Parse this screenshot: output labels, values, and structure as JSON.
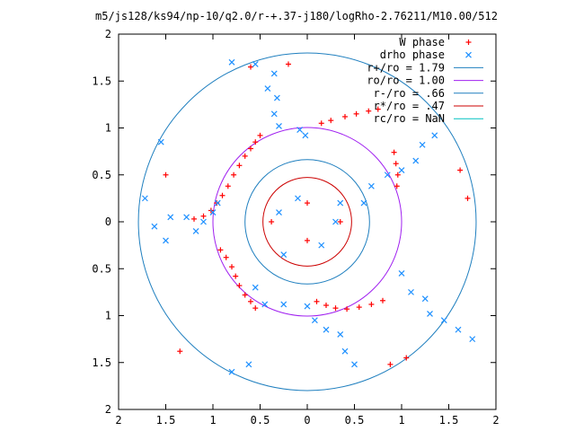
{
  "chart_data": {
    "type": "scatter",
    "title": "m5/js128/ks94/np-10/q2.0/r-+.37-j180/logRho-2.76211/M10.00/512",
    "xlim": [
      2,
      -2
    ],
    "ylim": [
      -2,
      2
    ],
    "x_ticks": [
      {
        "v": 2,
        "label": "2"
      },
      {
        "v": 1.5,
        "label": "1.5"
      },
      {
        "v": 1,
        "label": "1"
      },
      {
        "v": 0.5,
        "label": "0.5"
      },
      {
        "v": 0,
        "label": "0"
      },
      {
        "v": -0.5,
        "label": "0.5"
      },
      {
        "v": -1,
        "label": "1"
      },
      {
        "v": -1.5,
        "label": "1.5"
      },
      {
        "v": -2,
        "label": "2"
      }
    ],
    "y_ticks": [
      {
        "v": 2,
        "label": "2"
      },
      {
        "v": 1.5,
        "label": "1.5"
      },
      {
        "v": 1,
        "label": "1"
      },
      {
        "v": 0.5,
        "label": "0.5"
      },
      {
        "v": 0,
        "label": "0"
      },
      {
        "v": -0.5,
        "label": "0.5"
      },
      {
        "v": -1,
        "label": "1"
      },
      {
        "v": -1.5,
        "label": "1.5"
      },
      {
        "v": -2,
        "label": "2"
      }
    ],
    "legend_position": "top-right",
    "series": [
      {
        "name": "W phase",
        "marker": "+",
        "color": "#ff0000",
        "points": [
          [
            0.5,
            0.92
          ],
          [
            0.55,
            0.85
          ],
          [
            0.6,
            0.78
          ],
          [
            0.66,
            0.7
          ],
          [
            0.72,
            0.6
          ],
          [
            0.78,
            0.5
          ],
          [
            0.84,
            0.38
          ],
          [
            0.9,
            0.28
          ],
          [
            0.96,
            0.2
          ],
          [
            1.02,
            0.12
          ],
          [
            1.1,
            0.06
          ],
          [
            1.2,
            0.03
          ],
          [
            0.55,
            -0.92
          ],
          [
            0.6,
            -0.85
          ],
          [
            0.66,
            -0.78
          ],
          [
            0.72,
            -0.68
          ],
          [
            0.76,
            -0.58
          ],
          [
            0.8,
            -0.48
          ],
          [
            0.86,
            -0.38
          ],
          [
            0.92,
            -0.3
          ],
          [
            -0.1,
            -0.85
          ],
          [
            -0.2,
            -0.89
          ],
          [
            -0.3,
            -0.92
          ],
          [
            -0.42,
            -0.93
          ],
          [
            -0.55,
            -0.91
          ],
          [
            -0.68,
            -0.88
          ],
          [
            -0.8,
            -0.84
          ],
          [
            -0.95,
            0.38
          ],
          [
            -0.96,
            0.5
          ],
          [
            -0.94,
            0.62
          ],
          [
            -0.92,
            0.74
          ],
          [
            -0.15,
            1.05
          ],
          [
            -0.25,
            1.08
          ],
          [
            -0.4,
            1.12
          ],
          [
            -0.52,
            1.15
          ],
          [
            -0.65,
            1.18
          ],
          [
            -0.75,
            1.2
          ],
          [
            -0.35,
            -0.0
          ],
          [
            0.38,
            0.0
          ],
          [
            0.0,
            0.2
          ],
          [
            0.0,
            -0.2
          ],
          [
            -1.7,
            0.25
          ],
          [
            -1.62,
            0.55
          ],
          [
            -1.05,
            -1.45
          ],
          [
            -0.88,
            -1.52
          ],
          [
            1.35,
            -1.38
          ],
          [
            1.5,
            0.5
          ],
          [
            0.6,
            1.65
          ],
          [
            0.2,
            1.68
          ]
        ]
      },
      {
        "name": "drho phase",
        "marker": "x",
        "color": "#1e90ff",
        "points": [
          [
            0.02,
            0.92
          ],
          [
            0.08,
            0.98
          ],
          [
            0.3,
            1.02
          ],
          [
            0.35,
            1.15
          ],
          [
            0.32,
            1.32
          ],
          [
            0.42,
            1.42
          ],
          [
            0.35,
            1.58
          ],
          [
            0.55,
            1.68
          ],
          [
            0.8,
            1.7
          ],
          [
            0.95,
            0.2
          ],
          [
            1.0,
            0.1
          ],
          [
            1.1,
            0.0
          ],
          [
            1.18,
            -0.1
          ],
          [
            1.28,
            0.05
          ],
          [
            1.45,
            0.05
          ],
          [
            1.5,
            -0.2
          ],
          [
            1.62,
            -0.05
          ],
          [
            1.72,
            0.25
          ],
          [
            0.55,
            -0.7
          ],
          [
            0.45,
            -0.88
          ],
          [
            0.25,
            -0.88
          ],
          [
            0.0,
            -0.9
          ],
          [
            -0.08,
            -1.05
          ],
          [
            -0.2,
            -1.15
          ],
          [
            -0.35,
            -1.2
          ],
          [
            -0.4,
            -1.38
          ],
          [
            -0.5,
            -1.52
          ],
          [
            -1.0,
            -0.55
          ],
          [
            -1.1,
            -0.75
          ],
          [
            -1.25,
            -0.82
          ],
          [
            -1.3,
            -0.98
          ],
          [
            -1.45,
            -1.05
          ],
          [
            -1.6,
            -1.15
          ],
          [
            -1.75,
            -1.25
          ],
          [
            -0.6,
            0.2
          ],
          [
            -0.68,
            0.38
          ],
          [
            -0.85,
            0.5
          ],
          [
            -1.0,
            0.55
          ],
          [
            -1.15,
            0.65
          ],
          [
            -1.22,
            0.82
          ],
          [
            -1.35,
            0.92
          ],
          [
            -0.3,
            0.0
          ],
          [
            0.3,
            0.1
          ],
          [
            0.1,
            0.25
          ],
          [
            -0.15,
            -0.25
          ],
          [
            0.25,
            -0.35
          ],
          [
            -0.35,
            0.2
          ],
          [
            1.55,
            0.85
          ],
          [
            0.62,
            -1.52
          ],
          [
            0.8,
            -1.6
          ]
        ]
      },
      {
        "name": "r+/ro = 1.79",
        "type": "circle",
        "radius": 1.79,
        "color": "#1f7fbf"
      },
      {
        "name": "ro/ro = 1.00",
        "type": "circle",
        "radius": 1.0,
        "color": "#a020f0"
      },
      {
        "name": "r-/ro = .66",
        "type": "circle",
        "radius": 0.66,
        "color": "#1f7fbf"
      },
      {
        "name": "r*/ro = .47",
        "type": "circle",
        "radius": 0.47,
        "color": "#cc0000"
      },
      {
        "name": "rc/ro = NaN",
        "type": "circle",
        "radius": null,
        "color": "#00c0c0"
      }
    ]
  }
}
